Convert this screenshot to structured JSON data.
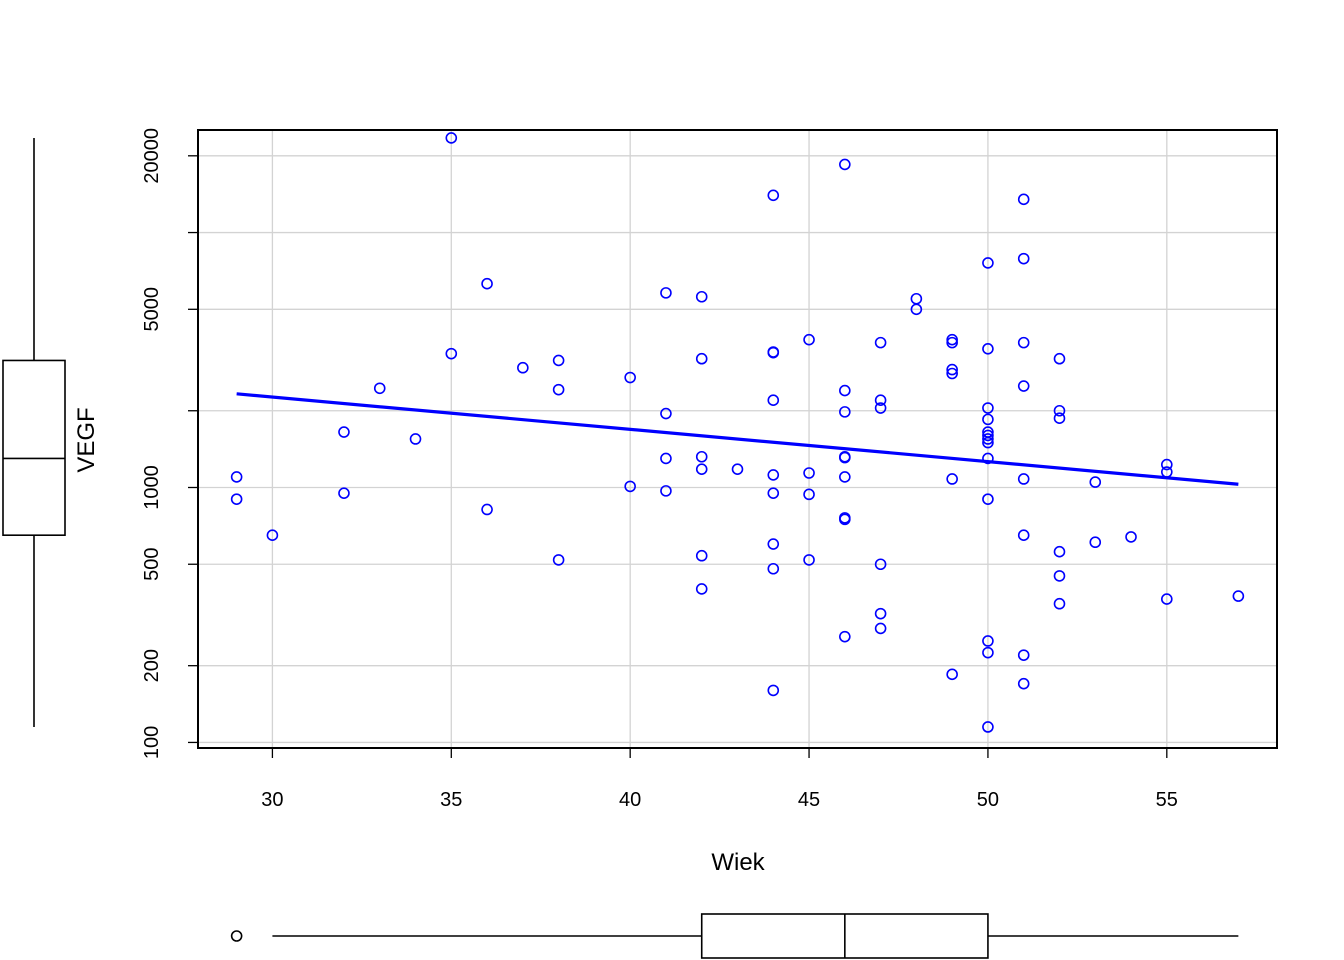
{
  "chart_data": {
    "type": "scatter",
    "title": "",
    "xlabel": "Wiek",
    "ylabel": "VEGF",
    "y_scale": "log",
    "xlim": [
      27.92,
      58.08
    ],
    "ylim": [
      95.1,
      25250
    ],
    "grid": true,
    "x_ticks": [
      30,
      35,
      40,
      45,
      50,
      55
    ],
    "y_ticks": [
      100,
      200,
      500,
      1000,
      5000,
      20000
    ],
    "y_gridlines": [
      100,
      200,
      500,
      1000,
      2000,
      5000,
      10000,
      20000
    ],
    "colors": {
      "points": "#0000ff",
      "trend": "#0000ff",
      "grid": "#d3d3d3",
      "axis": "#000000"
    },
    "series": [
      {
        "points": [
          [
            29,
            1100
          ],
          [
            29,
            900
          ],
          [
            30,
            650
          ],
          [
            32,
            1650
          ],
          [
            32,
            950
          ],
          [
            33,
            2450
          ],
          [
            34,
            1550
          ],
          [
            35,
            23500
          ],
          [
            35,
            3350
          ],
          [
            36,
            6300
          ],
          [
            36,
            820
          ],
          [
            37,
            2950
          ],
          [
            38,
            3150
          ],
          [
            38,
            2420
          ],
          [
            38,
            520
          ],
          [
            40,
            2700
          ],
          [
            40,
            1010
          ],
          [
            41,
            5800
          ],
          [
            41,
            1950
          ],
          [
            41,
            1300
          ],
          [
            41,
            970
          ],
          [
            42,
            5600
          ],
          [
            42,
            3200
          ],
          [
            42,
            1320
          ],
          [
            42,
            1180
          ],
          [
            42,
            540
          ],
          [
            42,
            400
          ],
          [
            43,
            1180
          ],
          [
            44,
            14000
          ],
          [
            44,
            3400
          ],
          [
            44,
            3380
          ],
          [
            44,
            2200
          ],
          [
            44,
            1120
          ],
          [
            44,
            950
          ],
          [
            44,
            600
          ],
          [
            44,
            480
          ],
          [
            44,
            160
          ],
          [
            45,
            3800
          ],
          [
            45,
            1140
          ],
          [
            45,
            940
          ],
          [
            45,
            520
          ],
          [
            46,
            18500
          ],
          [
            46,
            2400
          ],
          [
            46,
            1980
          ],
          [
            46,
            1320
          ],
          [
            46,
            1310
          ],
          [
            46,
            1100
          ],
          [
            46,
            760
          ],
          [
            46,
            750
          ],
          [
            46,
            260
          ],
          [
            47,
            3700
          ],
          [
            47,
            2200
          ],
          [
            47,
            2050
          ],
          [
            47,
            500
          ],
          [
            47,
            320
          ],
          [
            47,
            280
          ],
          [
            48,
            5500
          ],
          [
            48,
            5000
          ],
          [
            49,
            3800
          ],
          [
            49,
            3700
          ],
          [
            49,
            2900
          ],
          [
            49,
            2800
          ],
          [
            49,
            1080
          ],
          [
            49,
            185
          ],
          [
            50,
            7600
          ],
          [
            50,
            3500
          ],
          [
            50,
            2050
          ],
          [
            50,
            1850
          ],
          [
            50,
            1650
          ],
          [
            50,
            1600
          ],
          [
            50,
            1550
          ],
          [
            50,
            1500
          ],
          [
            50,
            1300
          ],
          [
            50,
            900
          ],
          [
            50,
            250
          ],
          [
            50,
            225
          ],
          [
            50,
            115
          ],
          [
            51,
            13500
          ],
          [
            51,
            7900
          ],
          [
            51,
            3700
          ],
          [
            51,
            2500
          ],
          [
            51,
            1080
          ],
          [
            51,
            650
          ],
          [
            51,
            220
          ],
          [
            51,
            170
          ],
          [
            52,
            3200
          ],
          [
            52,
            2000
          ],
          [
            52,
            1870
          ],
          [
            52,
            560
          ],
          [
            52,
            450
          ],
          [
            52,
            350
          ],
          [
            53,
            1050
          ],
          [
            53,
            610
          ],
          [
            54,
            640
          ],
          [
            55,
            1230
          ],
          [
            55,
            1150
          ],
          [
            55,
            365
          ],
          [
            57,
            375
          ]
        ]
      }
    ],
    "trend_line": {
      "x": [
        29,
        57
      ],
      "y": [
        2330,
        1030
      ]
    },
    "marginal_boxplot_x": {
      "min": 30,
      "q1": 42,
      "median": 46,
      "q3": 50,
      "max": 57,
      "outliers": [
        29
      ]
    },
    "marginal_boxplot_y": {
      "min": 115,
      "q1": 650,
      "median": 1300,
      "q3": 3150,
      "max": 23500,
      "outliers": []
    }
  }
}
